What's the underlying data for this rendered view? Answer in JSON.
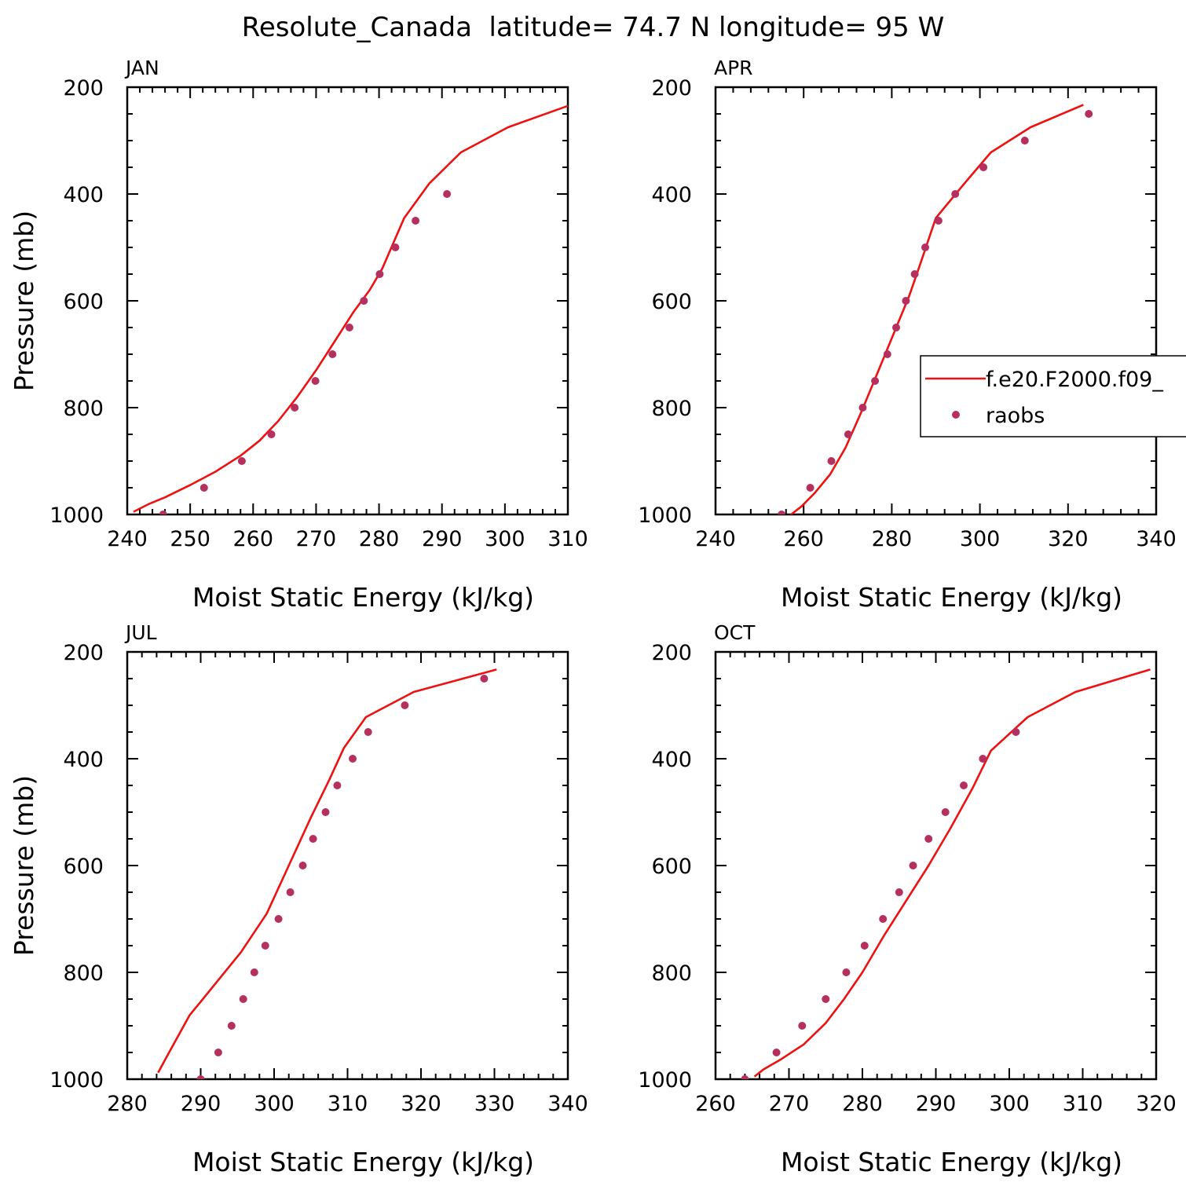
{
  "figure": {
    "title": "Resolute_Canada  latitude= 74.7 N longitude= 95 W"
  },
  "colors": {
    "model_line": "#ee1111",
    "obs_marker": "#b5305f",
    "axes": "#000000",
    "background": "#ffffff"
  },
  "legend": {
    "entries": [
      {
        "label": "f.e20.F2000.f09_",
        "kind": "line"
      },
      {
        "label": "raobs",
        "kind": "marker"
      }
    ],
    "placement": "right-middle of APR panel, clipped at figure edge"
  },
  "chart_data": [
    {
      "type": "line",
      "panel": "JAN",
      "title": "JAN",
      "xlabel": "Moist Static Energy (kJ/kg)",
      "ylabel": "Pressure (mb)",
      "xlim": [
        240,
        310
      ],
      "ylim": [
        200,
        1000
      ],
      "y_inverted": true,
      "xticks": [
        240,
        250,
        260,
        270,
        280,
        290,
        300,
        310
      ],
      "yticks": [
        200,
        400,
        600,
        800,
        1000
      ],
      "series": [
        {
          "name": "f.e20.F2000.f09_",
          "kind": "line",
          "x": [
            241,
            243.5,
            246,
            250,
            254,
            258,
            261,
            264,
            267,
            270,
            273,
            276,
            278.5,
            280.5,
            284,
            288,
            293,
            300.5,
            310
          ],
          "y": [
            995,
            980,
            968,
            945,
            920,
            890,
            862,
            825,
            780,
            730,
            675,
            620,
            580,
            540,
            445,
            380,
            322,
            275,
            235
          ]
        },
        {
          "name": "raobs",
          "kind": "scatter",
          "x": [
            245.7,
            252.2,
            258.2,
            262.9,
            266.6,
            269.9,
            272.6,
            275.3,
            277.6,
            280.1,
            282.6,
            285.8,
            290.8
          ],
          "y": [
            1000,
            950,
            900,
            850,
            800,
            750,
            700,
            650,
            600,
            550,
            500,
            450,
            400
          ]
        }
      ]
    },
    {
      "type": "line",
      "panel": "APR",
      "title": "APR",
      "xlabel": "Moist Static Energy (kJ/kg)",
      "ylabel": "",
      "xlim": [
        240,
        340
      ],
      "ylim": [
        200,
        1000
      ],
      "y_inverted": true,
      "xticks": [
        240,
        260,
        280,
        300,
        320,
        340
      ],
      "yticks": [
        200,
        400,
        600,
        800,
        1000
      ],
      "series": [
        {
          "name": "f.e20.F2000.f09_",
          "kind": "line",
          "x": [
            256.7,
            259.5,
            262.5,
            266,
            269.5,
            273,
            276,
            279,
            281.5,
            284,
            286.5,
            290,
            296.5,
            302.5,
            311.5,
            323.5
          ],
          "y": [
            1003,
            985,
            960,
            925,
            875,
            810,
            750,
            690,
            640,
            590,
            530,
            445,
            380,
            322,
            275,
            233
          ]
        },
        {
          "name": "raobs",
          "kind": "scatter",
          "x": [
            255,
            261.5,
            266.3,
            270.1,
            273.4,
            276.2,
            279,
            281,
            283.2,
            285.2,
            287.6,
            290.6,
            294.4,
            300.8,
            310.2,
            324.7
          ],
          "y": [
            1000,
            950,
            900,
            850,
            800,
            750,
            700,
            650,
            600,
            550,
            500,
            450,
            400,
            350,
            300,
            250
          ]
        }
      ]
    },
    {
      "type": "line",
      "panel": "JUL",
      "title": "JUL",
      "xlabel": "Moist Static Energy (kJ/kg)",
      "ylabel": "Pressure (mb)",
      "xlim": [
        280,
        340
      ],
      "ylim": [
        200,
        1000
      ],
      "y_inverted": true,
      "xticks": [
        280,
        290,
        300,
        310,
        320,
        330,
        340
      ],
      "yticks": [
        200,
        400,
        600,
        800,
        1000
      ],
      "series": [
        {
          "name": "f.e20.F2000.f09_",
          "kind": "line",
          "x": [
            284.2,
            285.5,
            288.5,
            290,
            295.5,
            299,
            302,
            305,
            307.5,
            309.5,
            312.5,
            319,
            330.3
          ],
          "y": [
            988,
            955,
            880,
            855,
            762,
            690,
            600,
            510,
            440,
            380,
            322,
            275,
            233
          ]
        },
        {
          "name": "raobs",
          "kind": "scatter",
          "x": [
            290,
            292.4,
            294.2,
            295.8,
            297.3,
            298.8,
            300.6,
            302.2,
            303.9,
            305.3,
            307,
            308.6,
            310.7,
            312.8,
            317.8,
            328.6
          ],
          "y": [
            1000,
            950,
            900,
            850,
            800,
            750,
            700,
            650,
            600,
            550,
            500,
            450,
            400,
            350,
            300,
            250
          ]
        }
      ]
    },
    {
      "type": "line",
      "panel": "OCT",
      "title": "OCT",
      "xlabel": "Moist Static Energy (kJ/kg)",
      "ylabel": "",
      "xlim": [
        260,
        320
      ],
      "ylim": [
        200,
        1000
      ],
      "y_inverted": true,
      "xticks": [
        260,
        270,
        280,
        290,
        300,
        310,
        320
      ],
      "yticks": [
        200,
        400,
        600,
        800,
        1000
      ],
      "series": [
        {
          "name": "f.e20.F2000.f09_",
          "kind": "line",
          "x": [
            265.3,
            266.5,
            269,
            272,
            275,
            277.5,
            280,
            283,
            286,
            289,
            292,
            295,
            297.5,
            302.5,
            309,
            319.2
          ],
          "y": [
            995,
            982,
            962,
            935,
            895,
            850,
            800,
            730,
            665,
            600,
            530,
            455,
            385,
            322,
            275,
            233
          ]
        },
        {
          "name": "raobs",
          "kind": "scatter",
          "x": [
            264,
            268.3,
            271.8,
            275,
            277.8,
            280.3,
            282.8,
            285,
            286.9,
            289,
            291.3,
            293.8,
            296.4,
            300.9
          ],
          "y": [
            1000,
            950,
            900,
            850,
            800,
            750,
            700,
            650,
            600,
            550,
            500,
            450,
            400,
            350
          ]
        }
      ]
    }
  ]
}
